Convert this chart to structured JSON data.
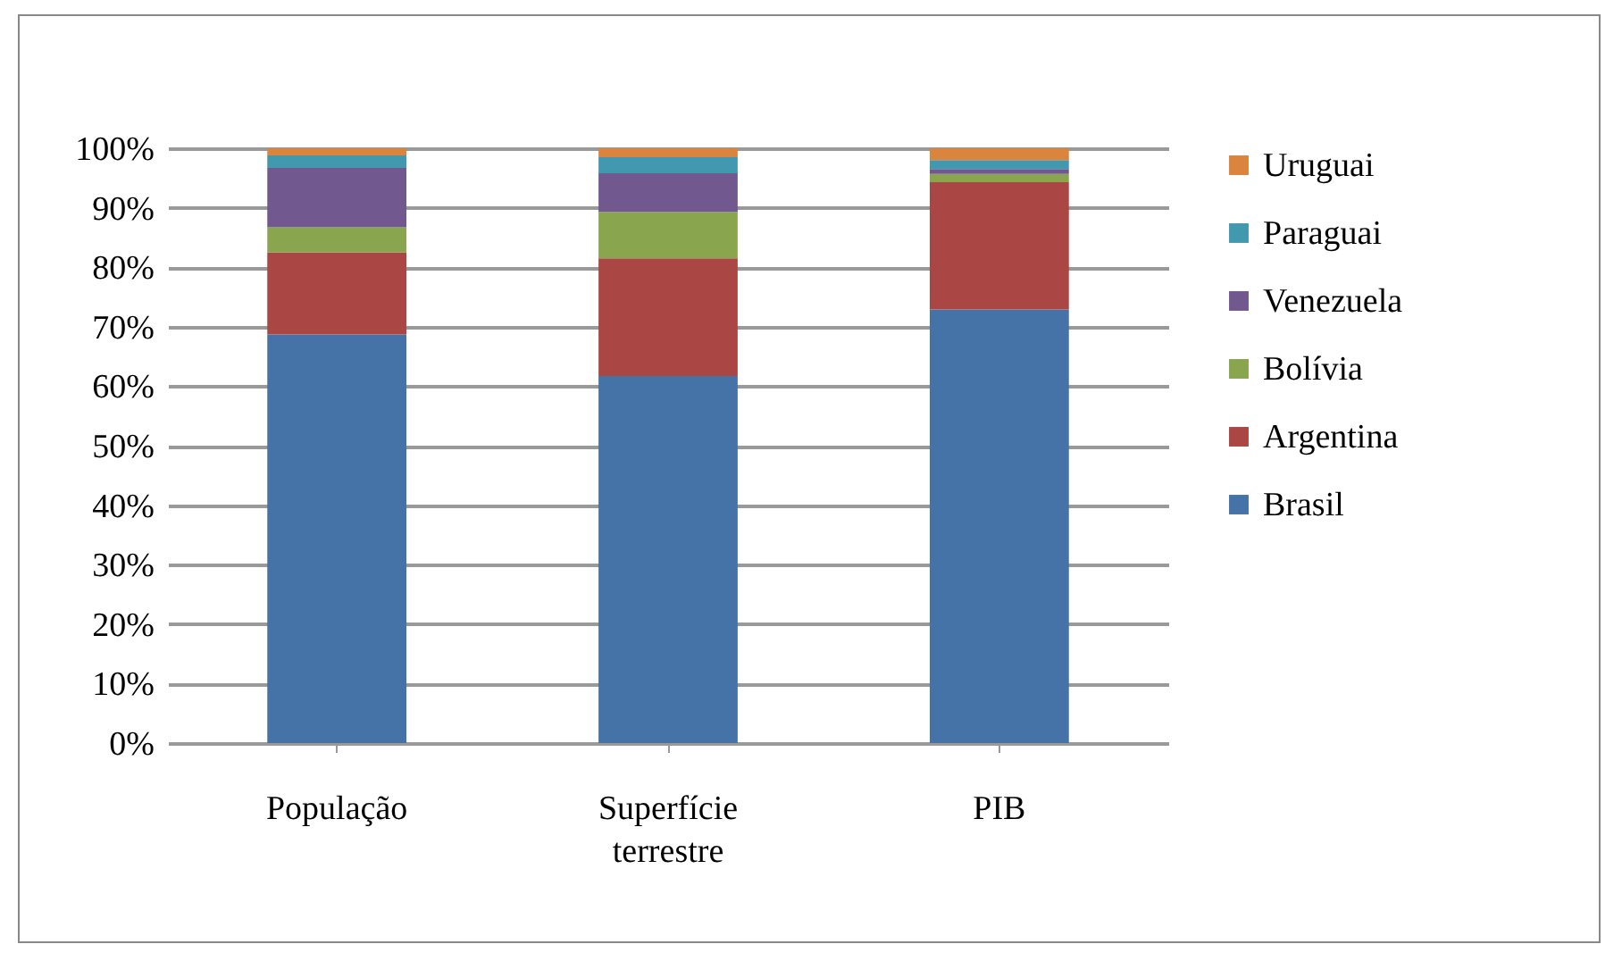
{
  "chart_data": {
    "type": "bar",
    "stacked": true,
    "categories": [
      "População",
      "Superfície terrestre",
      "PIB"
    ],
    "series": [
      {
        "name": "Brasil",
        "color": "#4572a7",
        "values": [
          68.7,
          61.7,
          72.9
        ]
      },
      {
        "name": "Argentina",
        "color": "#aa4643",
        "values": [
          13.8,
          19.8,
          21.4
        ]
      },
      {
        "name": "Bolívia",
        "color": "#89a54e",
        "values": [
          4.2,
          7.8,
          1.4
        ]
      },
      {
        "name": "Venezuela",
        "color": "#71588f",
        "values": [
          10,
          6.5,
          0.8
        ]
      },
      {
        "name": "Paraguai",
        "color": "#4198af",
        "values": [
          2.1,
          2.7,
          1.5
        ]
      },
      {
        "name": "Uruguai",
        "color": "#db843d",
        "values": [
          1.2,
          1.5,
          2.0
        ]
      }
    ],
    "ylim": [
      0,
      100
    ],
    "yticks": [
      {
        "value": 0,
        "label": "0%"
      },
      {
        "value": 10,
        "label": "10%"
      },
      {
        "value": 20,
        "label": "20%"
      },
      {
        "value": 30,
        "label": "30%"
      },
      {
        "value": 40,
        "label": "40%"
      },
      {
        "value": 50,
        "label": "50%"
      },
      {
        "value": 60,
        "label": "60%"
      },
      {
        "value": 70,
        "label": "70%"
      },
      {
        "value": 80,
        "label": "80%"
      },
      {
        "value": 90,
        "label": "90%"
      },
      {
        "value": 100,
        "label": "100%"
      }
    ],
    "grid": "y",
    "legend": "right"
  }
}
